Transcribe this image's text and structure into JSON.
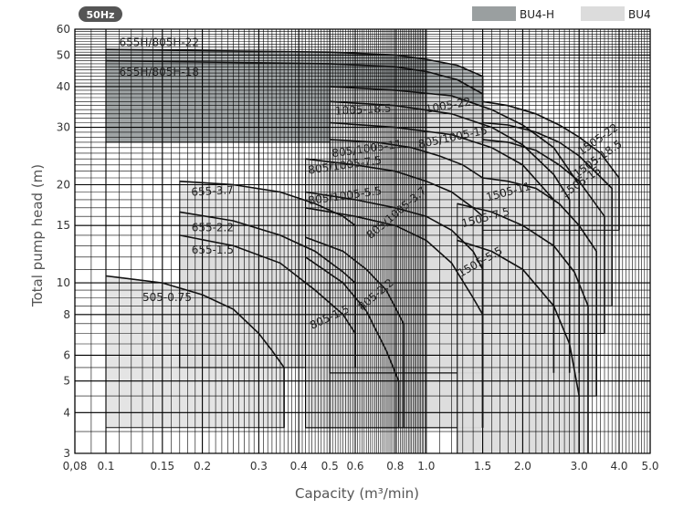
{
  "badge": "50Hz",
  "colors": {
    "bu4h": "#9a9fa0",
    "bu4": "#dcdcdc",
    "grid": "#000000",
    "curve": "#111111",
    "badge": "#555555"
  },
  "chart_data": {
    "type": "area",
    "title": "",
    "xlabel": "Capacity (m³/min)",
    "ylabel": "Total pump head (m)",
    "x_scale": "log",
    "y_scale": "log",
    "xlim": [
      0.08,
      5.0
    ],
    "ylim": [
      3,
      60
    ],
    "grid": true,
    "x_ticks": [
      0.08,
      0.1,
      0.15,
      0.2,
      0.3,
      0.4,
      0.5,
      0.6,
      0.8,
      1.0,
      1.5,
      2.0,
      3.0,
      4.0,
      5.0
    ],
    "x_tick_labels": [
      "0,08",
      "0.1",
      "0.15",
      "0.2",
      "0.3",
      "0.4",
      "0.5",
      "0.6",
      "0.8",
      "1.0",
      "1.5",
      "2.0",
      "3.0",
      "4.0",
      "5.0"
    ],
    "y_ticks": [
      3,
      4,
      5,
      6,
      8,
      10,
      15,
      20,
      30,
      40,
      50,
      60
    ],
    "y_tick_labels": [
      "3",
      "4",
      "5",
      "6",
      "8",
      "10",
      "15",
      "20",
      "30",
      "40",
      "50",
      "60"
    ],
    "legend": {
      "placement": "top-right",
      "entries": [
        {
          "name": "BU4-H",
          "color": "#9a9fa0"
        },
        {
          "name": "BU4",
          "color": "#dcdcdc"
        }
      ]
    },
    "series": [
      {
        "name": "505-0.75",
        "group": "BU4",
        "q_min": 0.1,
        "q_max": 0.36,
        "h_min": 3.6,
        "curve": [
          [
            0.1,
            10.5
          ],
          [
            0.15,
            10.0
          ],
          [
            0.2,
            9.2
          ],
          [
            0.25,
            8.3
          ],
          [
            0.3,
            7.0
          ],
          [
            0.33,
            6.2
          ],
          [
            0.36,
            5.5
          ]
        ],
        "label_at": [
          0.13,
          8.8
        ]
      },
      {
        "name": "655-1.5",
        "group": "BU4",
        "q_min": 0.17,
        "q_max": 0.6,
        "h_min": 5.5,
        "curve": [
          [
            0.17,
            14.0
          ],
          [
            0.25,
            13.0
          ],
          [
            0.35,
            11.5
          ],
          [
            0.45,
            9.5
          ],
          [
            0.55,
            8.0
          ],
          [
            0.6,
            7.0
          ]
        ],
        "label_at": [
          0.185,
          12.3
        ]
      },
      {
        "name": "655-2.2",
        "group": "BU4",
        "q_min": 0.17,
        "q_max": 0.6,
        "h_min": 5.5,
        "curve": [
          [
            0.17,
            16.5
          ],
          [
            0.25,
            15.5
          ],
          [
            0.35,
            14.0
          ],
          [
            0.45,
            12.5
          ],
          [
            0.55,
            10.8
          ],
          [
            0.6,
            10.0
          ]
        ],
        "label_at": [
          0.185,
          14.4
        ]
      },
      {
        "name": "655-3.7",
        "group": "BU4",
        "q_min": 0.17,
        "q_max": 0.6,
        "h_min": 5.5,
        "curve": [
          [
            0.17,
            20.5
          ],
          [
            0.25,
            20.0
          ],
          [
            0.35,
            19.0
          ],
          [
            0.45,
            17.5
          ],
          [
            0.55,
            16.0
          ],
          [
            0.6,
            15.0
          ]
        ],
        "label_at": [
          0.185,
          18.5
        ]
      },
      {
        "name": "805-1.5",
        "group": "BU4",
        "q_min": 0.42,
        "q_max": 0.82,
        "h_min": 3.6,
        "curve": [
          [
            0.42,
            12.0
          ],
          [
            0.55,
            10.0
          ],
          [
            0.65,
            8.2
          ],
          [
            0.75,
            6.2
          ],
          [
            0.82,
            5.0
          ]
        ],
        "label_at": [
          0.44,
          7.2
        ]
      },
      {
        "name": "805-2.2",
        "group": "BU4",
        "q_min": 0.42,
        "q_max": 0.85,
        "h_min": 3.6,
        "curve": [
          [
            0.42,
            13.8
          ],
          [
            0.55,
            12.5
          ],
          [
            0.65,
            11.0
          ],
          [
            0.75,
            9.5
          ],
          [
            0.85,
            7.5
          ]
        ],
        "label_at": [
          0.63,
          8.2
        ]
      },
      {
        "name": "805/1005-3.7",
        "group": "BU4",
        "q_min": 0.42,
        "q_max": 1.5,
        "h_min": 3.6,
        "curve": [
          [
            0.42,
            17.0
          ],
          [
            0.6,
            16.0
          ],
          [
            0.8,
            15.0
          ],
          [
            1.0,
            13.5
          ],
          [
            1.2,
            11.5
          ],
          [
            1.4,
            9.0
          ],
          [
            1.5,
            8.0
          ]
        ],
        "label_at": [
          0.67,
          13.6
        ]
      },
      {
        "name": "805/1005-5.5",
        "group": "BU4",
        "q_min": 0.42,
        "q_max": 1.5,
        "h_min": 3.6,
        "curve": [
          [
            0.42,
            19.0
          ],
          [
            0.6,
            18.0
          ],
          [
            0.8,
            17.0
          ],
          [
            1.0,
            16.0
          ],
          [
            1.2,
            14.5
          ],
          [
            1.4,
            12.5
          ],
          [
            1.5,
            11.0
          ]
        ],
        "label_at": [
          0.43,
          17.4
        ]
      },
      {
        "name": "805/1005-7.5",
        "group": "BU4",
        "q_min": 0.42,
        "q_max": 1.5,
        "h_min": 3.6,
        "curve": [
          [
            0.42,
            24.0
          ],
          [
            0.6,
            23.0
          ],
          [
            0.8,
            22.0
          ],
          [
            1.0,
            20.5
          ],
          [
            1.2,
            19.0
          ],
          [
            1.4,
            17.0
          ],
          [
            1.5,
            16.0
          ]
        ],
        "label_at": [
          0.43,
          21.6
        ]
      },
      {
        "name": "805/1005-11",
        "group": "BU4",
        "q_min": 0.5,
        "q_max": 1.5,
        "h_min": 5.3,
        "curve": [
          [
            0.5,
            27.5
          ],
          [
            0.7,
            27.0
          ],
          [
            0.9,
            26.0
          ],
          [
            1.1,
            24.5
          ],
          [
            1.3,
            23.0
          ],
          [
            1.5,
            21.0
          ]
        ],
        "label_at": [
          0.51,
          24.3
        ]
      },
      {
        "name": "805/1005-15",
        "group": "BU4",
        "q_min": 0.5,
        "q_max": 2.5,
        "h_min": 5.3,
        "curve": [
          [
            0.5,
            31.0
          ],
          [
            0.8,
            30.0
          ],
          [
            1.2,
            28.5
          ],
          [
            1.6,
            26.0
          ],
          [
            2.0,
            23.0
          ],
          [
            2.5,
            18.0
          ]
        ],
        "label_at": [
          0.95,
          25.9
        ]
      },
      {
        "name": "1005-18.5",
        "group": "BU4",
        "q_min": 0.5,
        "q_max": 2.8,
        "h_min": 5.3,
        "curve": [
          [
            0.5,
            36.0
          ],
          [
            0.8,
            35.0
          ],
          [
            1.2,
            33.0
          ],
          [
            1.6,
            30.0
          ],
          [
            2.0,
            26.5
          ],
          [
            2.5,
            21.5
          ],
          [
            2.8,
            18.0
          ]
        ],
        "label_at": [
          0.52,
          32.8
        ]
      },
      {
        "name": "1005-22",
        "group": "BU4",
        "q_min": 0.5,
        "q_max": 3.0,
        "h_min": 5.3,
        "curve": [
          [
            0.5,
            40.0
          ],
          [
            0.8,
            39.0
          ],
          [
            1.2,
            37.5
          ],
          [
            1.6,
            34.0
          ],
          [
            2.0,
            30.5
          ],
          [
            2.5,
            26.0
          ],
          [
            3.0,
            20.0
          ]
        ],
        "label_at": [
          1.0,
          33.2
        ]
      },
      {
        "name": "1505-5.5",
        "group": "BU4",
        "q_min": 1.25,
        "q_max": 3.0,
        "h_min": 3.0,
        "curve": [
          [
            1.25,
            13.5
          ],
          [
            1.6,
            12.5
          ],
          [
            2.0,
            11.0
          ],
          [
            2.5,
            8.5
          ],
          [
            2.8,
            6.5
          ],
          [
            3.0,
            4.5
          ]
        ],
        "label_at": [
          1.28,
          10.4
        ]
      },
      {
        "name": "1505-7.5",
        "group": "BU4",
        "q_min": 1.25,
        "q_max": 3.2,
        "h_min": 3.0,
        "curve": [
          [
            1.25,
            17.5
          ],
          [
            1.6,
            16.5
          ],
          [
            2.0,
            15.0
          ],
          [
            2.5,
            13.0
          ],
          [
            2.9,
            10.8
          ],
          [
            3.2,
            8.5
          ]
        ],
        "label_at": [
          1.3,
          14.8
        ]
      },
      {
        "name": "1505-11",
        "group": "BU4",
        "q_min": 1.5,
        "q_max": 3.4,
        "h_min": 4.5,
        "curve": [
          [
            1.5,
            21.0
          ],
          [
            1.8,
            20.5
          ],
          [
            2.2,
            19.5
          ],
          [
            2.6,
            17.5
          ],
          [
            3.0,
            15.0
          ],
          [
            3.4,
            12.5
          ]
        ],
        "label_at": [
          1.55,
          17.8
        ]
      },
      {
        "name": "1505-15",
        "group": "BU4",
        "q_min": 1.5,
        "q_max": 3.6,
        "h_min": 7.0,
        "curve": [
          [
            1.5,
            27.5
          ],
          [
            1.8,
            27.0
          ],
          [
            2.2,
            25.5
          ],
          [
            2.6,
            23.0
          ],
          [
            3.0,
            20.5
          ],
          [
            3.6,
            16.0
          ]
        ],
        "label_at": [
          2.7,
          18.2
        ]
      },
      {
        "name": "1505-18.5",
        "group": "BU4",
        "q_min": 1.5,
        "q_max": 3.8,
        "h_min": 8.5,
        "curve": [
          [
            1.5,
            31.0
          ],
          [
            1.8,
            30.5
          ],
          [
            2.2,
            29.0
          ],
          [
            2.6,
            27.0
          ],
          [
            3.0,
            24.5
          ],
          [
            3.8,
            19.5
          ]
        ],
        "label_at": [
          2.95,
          21.0
        ]
      },
      {
        "name": "1505-22",
        "group": "BU4",
        "q_min": 1.5,
        "q_max": 4.0,
        "h_min": 14.5,
        "curve": [
          [
            1.5,
            36.0
          ],
          [
            1.8,
            35.0
          ],
          [
            2.2,
            33.0
          ],
          [
            2.6,
            30.5
          ],
          [
            3.0,
            28.0
          ],
          [
            3.5,
            25.0
          ],
          [
            4.0,
            21.0
          ]
        ],
        "label_at": [
          3.05,
          24.6
        ]
      },
      {
        "name": "655H/805H-18",
        "group": "BU4-H",
        "q_min": 0.1,
        "q_max": 1.5,
        "h_min": 27.0,
        "curve": [
          [
            0.1,
            48.0
          ],
          [
            0.5,
            47.0
          ],
          [
            0.8,
            46.0
          ],
          [
            1.0,
            44.5
          ],
          [
            1.25,
            42.0
          ],
          [
            1.5,
            38.0
          ]
        ],
        "label_at": [
          0.11,
          43.2
        ]
      },
      {
        "name": "655H/805H-22",
        "group": "BU4-H",
        "q_min": 0.1,
        "q_max": 1.5,
        "h_min": 27.0,
        "curve": [
          [
            0.1,
            52.0
          ],
          [
            0.5,
            51.0
          ],
          [
            0.8,
            50.0
          ],
          [
            1.0,
            48.5
          ],
          [
            1.25,
            46.5
          ],
          [
            1.5,
            43.0
          ]
        ],
        "label_at": [
          0.11,
          53.2
        ]
      }
    ]
  }
}
